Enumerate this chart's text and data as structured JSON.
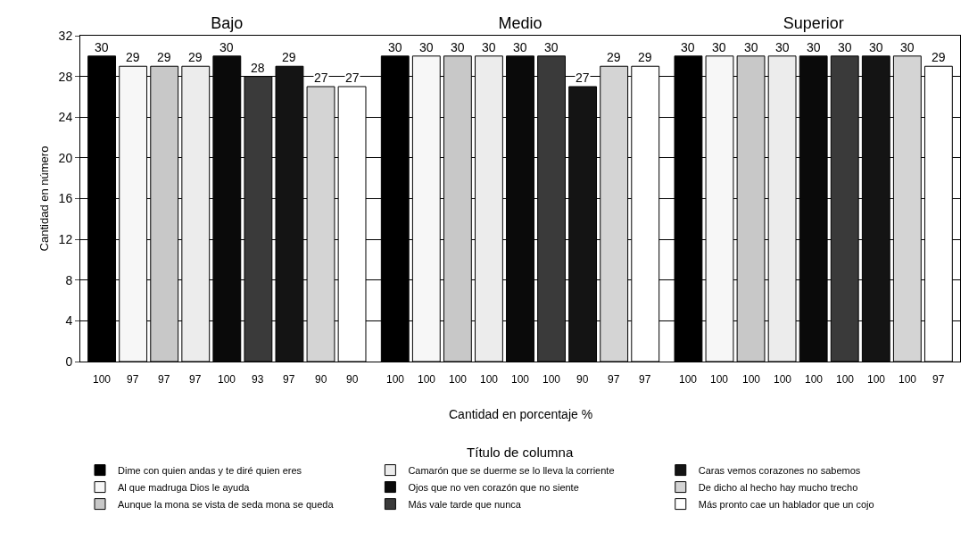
{
  "chart_data": {
    "type": "bar",
    "ylabel": "Cantidad en número",
    "legend_title": "Título de columna",
    "categories": [
      "Bajo",
      "Medio",
      "Superior"
    ],
    "series": [
      {
        "name": "Dime con quien andas y te diré quien eres",
        "color": "#000000",
        "values": [
          30,
          30,
          30
        ]
      },
      {
        "name": "Al que madruga Dios le ayuda",
        "color": "#f7f7f7",
        "values": [
          29,
          30,
          30
        ]
      },
      {
        "name": "Aunque la mona se vista de seda mona se queda",
        "color": "#c8c8c8",
        "values": [
          29,
          30,
          30
        ]
      },
      {
        "name": "Camarón que se duerme se lo lleva la corriente",
        "color": "#ececec",
        "values": [
          29,
          30,
          30
        ]
      },
      {
        "name": "Ojos que no ven corazón que no siente",
        "color": "#0a0a0a",
        "values": [
          30,
          30,
          30
        ]
      },
      {
        "name": "Más vale tarde que nunca",
        "color": "#3a3a3a",
        "values": [
          28,
          30,
          30
        ]
      },
      {
        "name": "Caras vemos corazones no sabemos",
        "color": "#141414",
        "values": [
          29,
          27,
          30
        ]
      },
      {
        "name": "De dicho al hecho hay mucho trecho",
        "color": "#d4d4d4",
        "values": [
          27,
          29,
          30
        ]
      },
      {
        "name": "Más pronto cae un hablador que un cojo",
        "color": "#ffffff",
        "values": [
          27,
          29,
          29
        ]
      }
    ],
    "ylim": [
      0,
      32
    ],
    "yticks": [
      0,
      4,
      8,
      12,
      16,
      20,
      24,
      28,
      32
    ],
    "grid": "y",
    "data_labels": true,
    "legend": "bottom",
    "annotations": [
      "Cantidad en porcentaje %",
      "100",
      "97",
      "97",
      "97",
      "100",
      "93",
      "97",
      "90",
      "90",
      "100",
      "100",
      "100",
      "100",
      "100",
      "100",
      "90",
      "97",
      "97",
      "100",
      "100",
      "100",
      "100",
      "100",
      "100",
      "100",
      "100",
      "97"
    ]
  }
}
